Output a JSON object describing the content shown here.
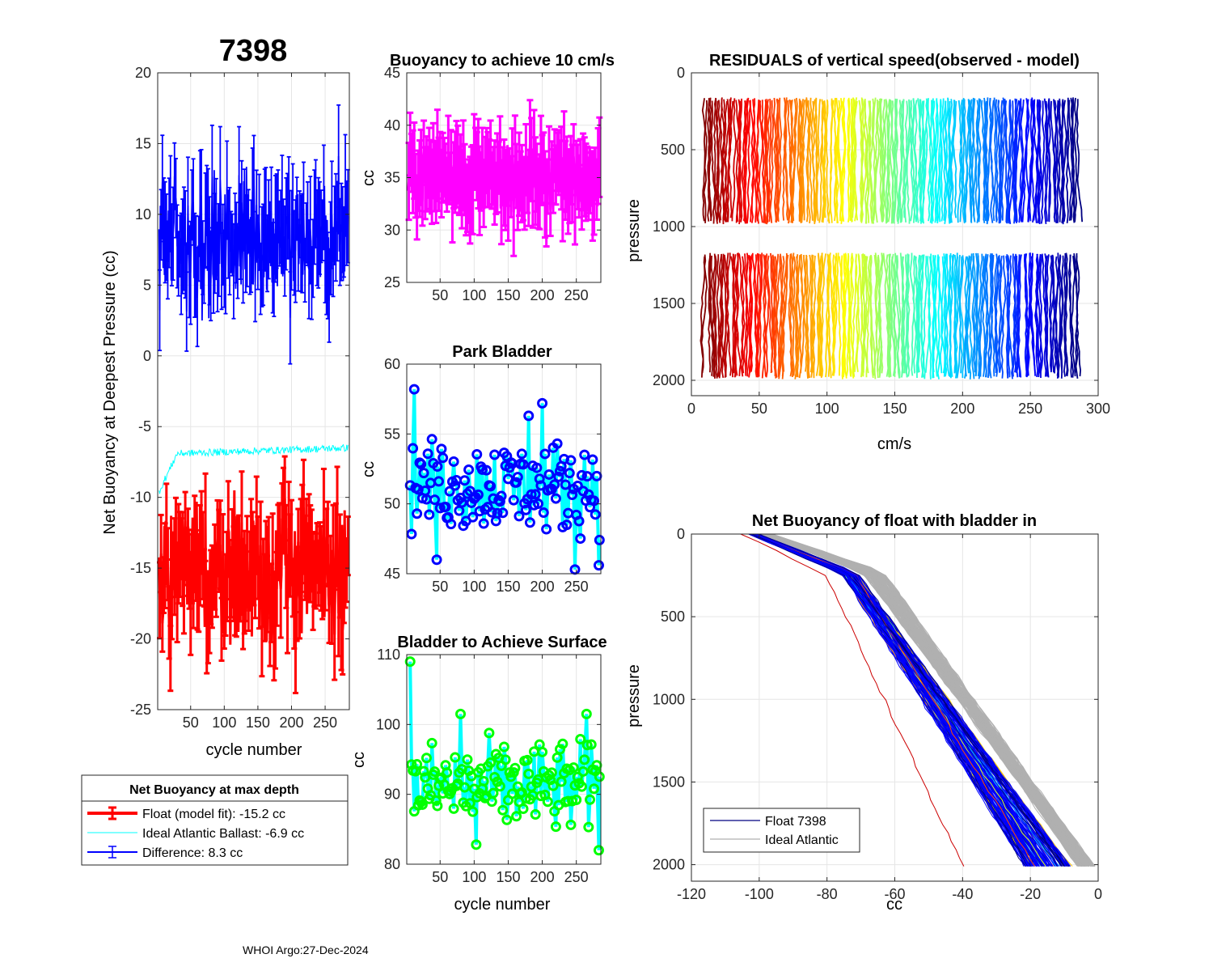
{
  "figure": {
    "float_id": "7398",
    "footer": "WHOI Argo:27-Dec-2024"
  },
  "colors": {
    "float_fit": "#ff0000",
    "ideal": "#00ffff",
    "difference": "#0000ff",
    "magenta": "#ff00ff",
    "park_marker": "#0000ff",
    "surface_marker": "#00ff00",
    "line_cyan": "#00ffff",
    "gray_profiles": "#b0b0b0",
    "axis": "#262626",
    "grid": "#e6e6e6"
  },
  "chart_data": [
    {
      "id": "net-buoyancy",
      "type": "errorbar",
      "title": "7398",
      "xlabel": "cycle number",
      "ylabel": "Net Buoyancy at Deepest Pressure (cc)",
      "xlim": [
        1,
        286
      ],
      "ylim": [
        -25,
        20
      ],
      "xticks": [
        50,
        100,
        150,
        200,
        250
      ],
      "yticks": [
        -25,
        -20,
        -15,
        -10,
        -5,
        0,
        5,
        10,
        15,
        20
      ],
      "series": [
        {
          "name": "Float (model fit)",
          "mean": -15.2,
          "spread": 2.3,
          "err": 2.8,
          "color": "#ff0000"
        },
        {
          "name": "Ideal Atlantic Ballast",
          "mean": -6.9,
          "start": -9.6,
          "end": -6.5,
          "color": "#00ffff"
        },
        {
          "name": "Difference",
          "mean": 8.3,
          "spread": 2.3,
          "err": 3.0,
          "color": "#0000ff"
        }
      ],
      "legend": {
        "title": "Net Buoyancy at max depth",
        "entries": [
          "Float (model fit): -15.2 cc",
          "Ideal Atlantic Ballast:  -6.9 cc",
          "Difference:   8.3 cc"
        ],
        "location": "below-plot"
      }
    },
    {
      "id": "buoyancy-10cms",
      "type": "errorbar",
      "title": "Buoyancy to achieve 10 cm/s",
      "xlabel": "",
      "ylabel": "cc",
      "xlim": [
        1,
        286
      ],
      "ylim": [
        25,
        45
      ],
      "xticks": [
        50,
        100,
        150,
        200,
        250
      ],
      "yticks": [
        25,
        30,
        35,
        40,
        45
      ],
      "mean": 35,
      "spread": 1.4,
      "err": 3.3,
      "color": "#ff00ff"
    },
    {
      "id": "park-bladder",
      "type": "line-marker",
      "title": "Park Bladder",
      "xlabel": "",
      "ylabel": "cc",
      "xlim": [
        1,
        286
      ],
      "ylim": [
        45,
        60
      ],
      "xticks": [
        50,
        100,
        150,
        200,
        250
      ],
      "yticks": [
        45,
        50,
        55,
        60
      ],
      "mean": 51.3,
      "spread": 1.6,
      "extremes": [
        [
          12,
          58.2
        ],
        [
          200,
          57.2
        ],
        [
          180,
          56.3
        ],
        [
          45,
          46.0
        ],
        [
          248,
          45.3
        ],
        [
          283,
          45.6
        ]
      ],
      "line_color": "#00ffff",
      "marker_color": "#0000ff"
    },
    {
      "id": "bladder-surface",
      "type": "line-marker",
      "title": "Bladder to Achieve Surface",
      "xlabel": "cycle number",
      "ylabel": "cc",
      "xlim": [
        1,
        286
      ],
      "ylim": [
        80,
        110
      ],
      "xticks": [
        50,
        100,
        150,
        200,
        250
      ],
      "yticks": [
        80,
        90,
        100,
        110
      ],
      "mean": 91,
      "spread": 3.2,
      "extremes": [
        [
          6,
          109
        ],
        [
          80,
          101.5
        ],
        [
          265,
          101.5
        ],
        [
          103,
          82.8
        ],
        [
          283,
          82.0
        ]
      ],
      "line_color": "#00ffff",
      "marker_color": "#00ff00"
    },
    {
      "id": "residuals",
      "type": "line",
      "title": "RESIDUALS of vertical speed(observed - model)",
      "xlabel": "cm/s",
      "ylabel": "pressure",
      "xlim": [
        0,
        300
      ],
      "ylim": [
        0,
        2100
      ],
      "y_reversed": true,
      "xticks": [
        0,
        50,
        100,
        150,
        200,
        250,
        300
      ],
      "yticks": [
        0,
        500,
        1000,
        1500,
        2000
      ],
      "cycle_range": [
        10,
        285
      ],
      "segments": [
        [
          160,
          1000
        ],
        [
          1170,
          2000
        ]
      ],
      "colormap": "jet"
    },
    {
      "id": "net-buoyancy-profiles",
      "type": "line",
      "title": "Net Buoyancy of float with bladder in",
      "xlabel": "cc",
      "ylabel": "pressure",
      "xlim": [
        -120,
        0
      ],
      "ylim": [
        0,
        2100
      ],
      "y_reversed": true,
      "xticks": [
        -120,
        -100,
        -80,
        -60,
        -40,
        -20,
        0
      ],
      "yticks": [
        0,
        500,
        1000,
        1500,
        2000
      ],
      "profile_start": [
        -110,
        0
      ],
      "profile_end_range": [
        -22,
        -8
      ],
      "profile_end_pressure": 2010,
      "legend": {
        "entries": [
          {
            "label": "Float 7398",
            "color": "#000080"
          },
          {
            "label": "Ideal Atlantic",
            "color": "#b0b0b0"
          }
        ],
        "location": "bottom-left"
      }
    }
  ]
}
